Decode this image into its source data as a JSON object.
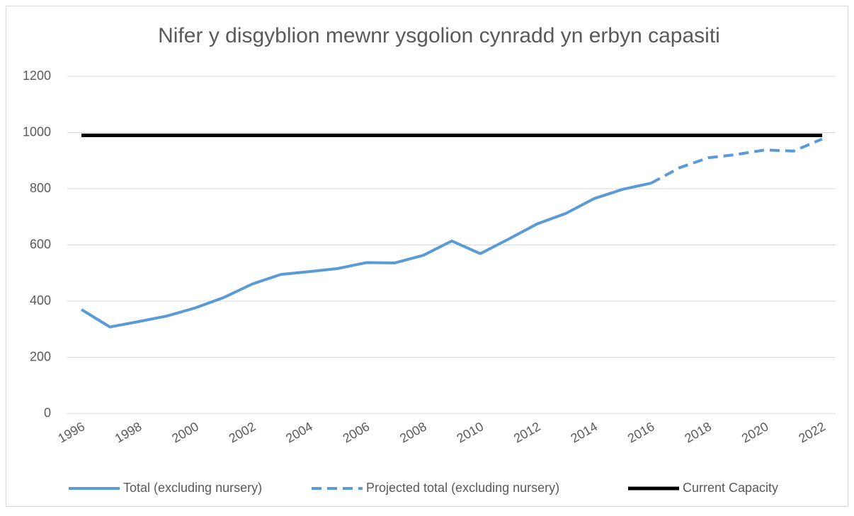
{
  "chart_data": {
    "type": "line",
    "title": "Nifer y disgyblion mewnr ysgolion cynradd yn erbyn capasiti",
    "x": [
      1996,
      1997,
      1998,
      1999,
      2000,
      2001,
      2002,
      2003,
      2004,
      2005,
      2006,
      2007,
      2008,
      2009,
      2010,
      2011,
      2012,
      2013,
      2014,
      2015,
      2016,
      2017,
      2018,
      2019,
      2020,
      2021,
      2022
    ],
    "series": [
      {
        "name": "Total (excluding nursery)",
        "color": "#5b9bd5",
        "line_style": "solid",
        "values": [
          370,
          308,
          327,
          347,
          376,
          413,
          461,
          495,
          505,
          516,
          537,
          536,
          563,
          614,
          569,
          621,
          675,
          712,
          765,
          798,
          820,
          null,
          null,
          null,
          null,
          null,
          null
        ]
      },
      {
        "name": "Projected total (excluding nursery)",
        "color": "#5b9bd5",
        "line_style": "dashed",
        "values": [
          null,
          null,
          null,
          null,
          null,
          null,
          null,
          null,
          null,
          null,
          null,
          null,
          null,
          null,
          null,
          null,
          null,
          null,
          null,
          null,
          820,
          875,
          910,
          922,
          938,
          934,
          977
        ]
      },
      {
        "name": "Current Capacity",
        "color": "#000000",
        "line_style": "solid",
        "values": [
          990,
          990,
          990,
          990,
          990,
          990,
          990,
          990,
          990,
          990,
          990,
          990,
          990,
          990,
          990,
          990,
          990,
          990,
          990,
          990,
          990,
          990,
          990,
          990,
          990,
          990,
          990
        ]
      }
    ],
    "xlim": [
      1996,
      2022
    ],
    "xticks": [
      1996,
      1998,
      2000,
      2002,
      2004,
      2006,
      2008,
      2010,
      2012,
      2014,
      2016,
      2018,
      2020,
      2022
    ],
    "ylim": [
      0,
      1200
    ],
    "yticks": [
      0,
      200,
      400,
      600,
      800,
      1000,
      1200
    ],
    "grid": true,
    "legend": "bottom"
  }
}
